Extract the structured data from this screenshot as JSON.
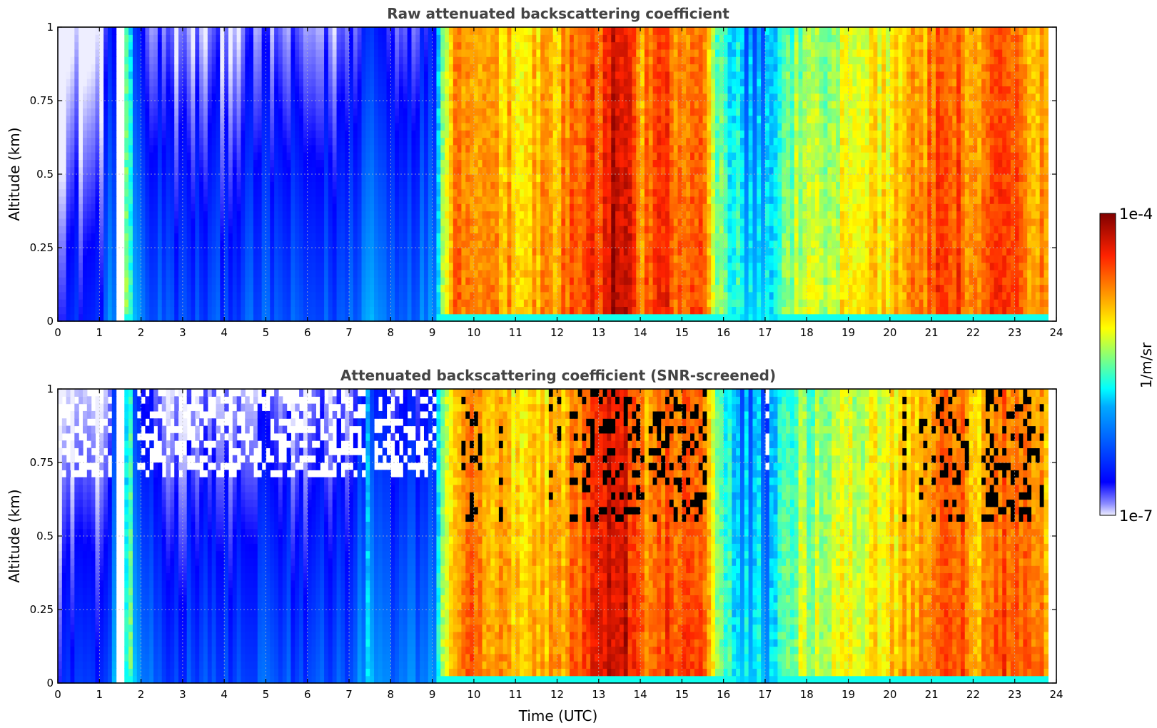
{
  "chart_data": [
    {
      "type": "heatmap",
      "title": "Raw attenuated backscattering coefficient",
      "xlabel": "",
      "ylabel": "Altitude (km)",
      "xlim": [
        0,
        24
      ],
      "ylim": [
        0,
        1
      ],
      "xticks": [
        "0",
        "1",
        "2",
        "3",
        "4",
        "5",
        "6",
        "7",
        "8",
        "9",
        "10",
        "11",
        "12",
        "13",
        "14",
        "15",
        "16",
        "17",
        "18",
        "19",
        "20",
        "21",
        "22",
        "23",
        "24"
      ],
      "yticks": [
        "0",
        "0.25",
        "0.5",
        "0.75",
        "1"
      ],
      "grid": true,
      "colormap": "jet",
      "masked_low_snr": false,
      "data_gap_utc": [
        1.45,
        1.55
      ],
      "data_end_utc": 23.8,
      "approx_log10_column_profile": {
        "time_utc": [
          0,
          1,
          1.7,
          2,
          3,
          4,
          5,
          6,
          7,
          7.5,
          8,
          9,
          9.5,
          10,
          11,
          12,
          13,
          13.6,
          14,
          14.5,
          15,
          15.5,
          16,
          17,
          17.8,
          18.5,
          19,
          20,
          21,
          21.5,
          22,
          22.5,
          23,
          23.5,
          23.8
        ],
        "log10_beta": [
          -6.55,
          -6.55,
          -5.4,
          -6.2,
          -6.4,
          -6.35,
          -6.3,
          -6.35,
          -6.3,
          -5.9,
          -6.2,
          -6.1,
          -4.7,
          -4.6,
          -4.9,
          -4.8,
          -4.4,
          -4.1,
          -4.7,
          -4.5,
          -4.5,
          -4.6,
          -5.6,
          -5.9,
          -5.3,
          -5.2,
          -5.1,
          -5.0,
          -4.6,
          -4.4,
          -4.9,
          -4.5,
          -4.6,
          -4.7,
          -4.8
        ]
      }
    },
    {
      "type": "heatmap",
      "title": "Attenuated backscattering coefficient (SNR-screened)",
      "xlabel": "Time (UTC)",
      "ylabel": "Altitude (km)",
      "xlim": [
        0,
        24
      ],
      "ylim": [
        0,
        1
      ],
      "xticks": [
        "0",
        "1",
        "2",
        "3",
        "4",
        "5",
        "6",
        "7",
        "8",
        "9",
        "10",
        "11",
        "12",
        "13",
        "14",
        "15",
        "16",
        "17",
        "18",
        "19",
        "20",
        "21",
        "22",
        "23",
        "24"
      ],
      "yticks": [
        "0",
        "0.25",
        "0.5",
        "0.75",
        "1"
      ],
      "grid": true,
      "colormap": "jet",
      "masked_low_snr": true,
      "data_gap_utc": [
        1.45,
        1.55
      ],
      "data_end_utc": 23.8
    }
  ],
  "colorbar": {
    "max_label": "1e-4",
    "min_label": "1e-7",
    "label": "1/m/sr",
    "log10_range": [
      -7,
      -4
    ]
  }
}
